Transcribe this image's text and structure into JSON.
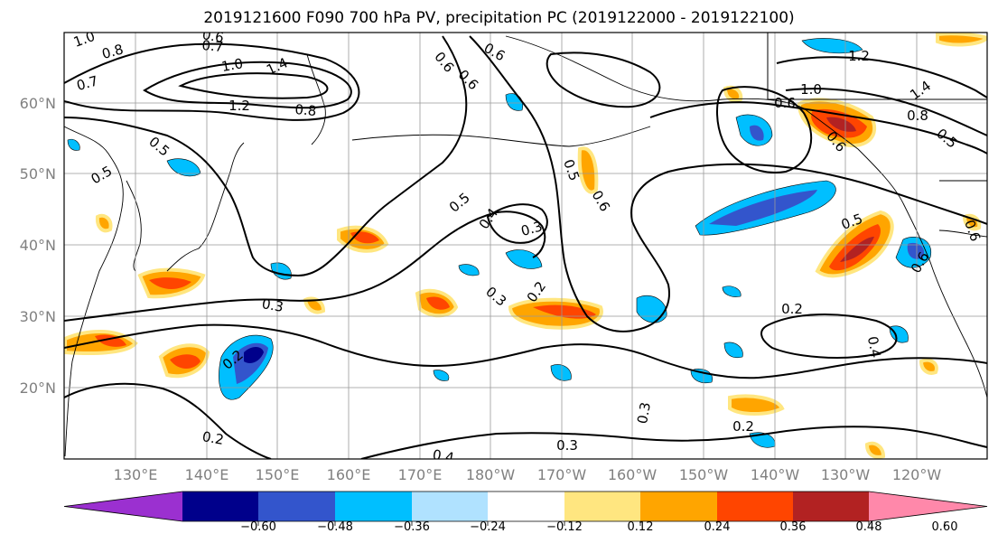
{
  "title": "2019121600 F090 700 hPa PV, precipitation PC (2019122000 - 2019122100)",
  "lat_labels": [
    "60°N",
    "50°N",
    "40°N",
    "30°N",
    "20°N"
  ],
  "lon_labels": [
    "130°E",
    "140°E",
    "150°E",
    "160°E",
    "170°E",
    "180°W",
    "170°W",
    "160°W",
    "150°W",
    "140°W",
    "130°W",
    "120°W"
  ],
  "colorbar": {
    "ticks": [
      "−0.60",
      "−0.48",
      "−0.36",
      "−0.24",
      "−0.12",
      "0.12",
      "0.24",
      "0.36",
      "0.48",
      "0.60"
    ],
    "colors": [
      "#9b30d0",
      "#00008b",
      "#3355cc",
      "#00bfff",
      "#b0e2ff",
      "#ffffff",
      "#ffe680",
      "#ffa500",
      "#ff4500",
      "#b22222",
      "#ff88aa"
    ]
  },
  "contour_labels": [
    "1.0",
    "0.8",
    "0.7",
    "0.6",
    "0.7",
    "1.0",
    "1.4",
    "1.2",
    "0.8",
    "0.6",
    "0.6",
    "0.5",
    "0.5",
    "0.6",
    "0.4",
    "0.3",
    "0.5",
    "0.6",
    "0.3",
    "0.2",
    "0.3",
    "0.2",
    "0.4",
    "0.3",
    "0.2",
    "0.3",
    "0.4",
    "0.5",
    "0.5",
    "1.2",
    "1.0",
    "0.6",
    "1.4",
    "0.8",
    "0.5",
    "0.6",
    "0.6",
    "0.2",
    "0.2",
    "0.6"
  ]
}
